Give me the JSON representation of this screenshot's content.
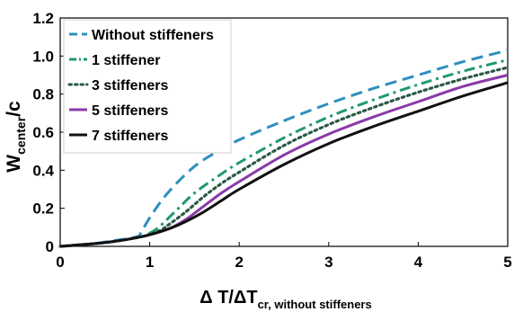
{
  "chart_data": {
    "type": "line",
    "xlabel": {
      "main": "Δ T/ΔT",
      "sub": "cr, without stiffeners"
    },
    "ylabel": {
      "main": "W",
      "sub": "center",
      "tail": "/c"
    },
    "xlim": [
      0,
      5
    ],
    "ylim": [
      0,
      1.2
    ],
    "xticks": [
      "0",
      "1",
      "2",
      "3",
      "4",
      "5"
    ],
    "yticks": [
      "0",
      "0.2",
      "0.4",
      "0.6",
      "0.8",
      "1.0",
      "1.2"
    ],
    "grid": false,
    "legend_position": "top-left",
    "series": [
      {
        "name": "Without stiffeners",
        "color": "#2e8fbf",
        "dash": "dashed",
        "x": [
          0,
          0.3,
          0.6,
          0.85,
          0.9,
          1.0,
          1.2,
          1.5,
          1.8,
          2.0,
          2.5,
          3.0,
          3.5,
          4.0,
          4.5,
          5.0
        ],
        "y": [
          0,
          0.01,
          0.03,
          0.05,
          0.07,
          0.15,
          0.28,
          0.42,
          0.51,
          0.56,
          0.66,
          0.75,
          0.83,
          0.9,
          0.97,
          1.03
        ]
      },
      {
        "name": "1 stiffener",
        "color": "#1f9a6e",
        "dash": "dashdot",
        "x": [
          0,
          0.5,
          0.9,
          1.0,
          1.1,
          1.3,
          1.5,
          1.8,
          2.0,
          2.5,
          3.0,
          3.5,
          4.0,
          4.5,
          5.0
        ],
        "y": [
          0,
          0.02,
          0.05,
          0.07,
          0.1,
          0.19,
          0.28,
          0.38,
          0.44,
          0.57,
          0.68,
          0.77,
          0.85,
          0.92,
          0.98
        ]
      },
      {
        "name": "3 stiffeners",
        "color": "#2a5a44",
        "dash": "dotted",
        "x": [
          0,
          0.5,
          0.9,
          1.1,
          1.2,
          1.4,
          1.6,
          1.8,
          2.0,
          2.5,
          3.0,
          3.5,
          4.0,
          4.5,
          5.0
        ],
        "y": [
          0,
          0.02,
          0.05,
          0.08,
          0.11,
          0.18,
          0.26,
          0.33,
          0.39,
          0.53,
          0.64,
          0.73,
          0.81,
          0.88,
          0.94
        ]
      },
      {
        "name": "5 stiffeners",
        "color": "#8a3aa8",
        "dash": "solid",
        "x": [
          0,
          0.5,
          0.9,
          1.2,
          1.4,
          1.6,
          1.8,
          2.0,
          2.5,
          3.0,
          3.5,
          4.0,
          4.5,
          5.0
        ],
        "y": [
          0,
          0.02,
          0.05,
          0.09,
          0.14,
          0.21,
          0.28,
          0.34,
          0.48,
          0.59,
          0.68,
          0.76,
          0.84,
          0.9
        ]
      },
      {
        "name": "7 stiffeners",
        "color": "#111111",
        "dash": "solid",
        "x": [
          0,
          0.5,
          0.9,
          1.2,
          1.4,
          1.6,
          1.8,
          2.0,
          2.5,
          3.0,
          3.5,
          4.0,
          4.5,
          5.0
        ],
        "y": [
          0,
          0.02,
          0.05,
          0.09,
          0.13,
          0.18,
          0.24,
          0.3,
          0.43,
          0.54,
          0.63,
          0.71,
          0.79,
          0.86
        ]
      }
    ]
  }
}
